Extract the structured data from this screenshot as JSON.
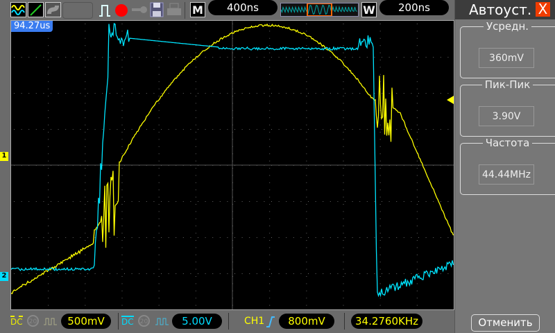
{
  "toolbar": {
    "mode_label": "M",
    "timebase": "400ns",
    "window_label": "W",
    "window_timebase": "200ns",
    "icons": [
      "channels-icon",
      "cursor-icon",
      "persist-icon",
      "trigger-pulse-icon",
      "record-icon",
      "key-icon",
      "save-icon",
      "print-icon"
    ],
    "record_color": "#ff0000"
  },
  "screen": {
    "trigger_position": "94.27us",
    "ch1_marker": "1",
    "ch2_marker": "2",
    "ch1_color": "#ffff00",
    "ch2_color": "#00e5ff"
  },
  "bottom": {
    "ch1_coupling": "DC",
    "ch1_bw": "20",
    "ch1_scale": "500mV",
    "ch2_coupling": "DC",
    "ch2_bw": "20",
    "ch2_scale": "5.00V",
    "trigger_source": "CH1",
    "trigger_level": "800mV",
    "trigger_frequency": "34.2760KHz"
  },
  "panel": {
    "title": "Автоуст.",
    "close": "X",
    "groups": [
      {
        "label": "Усредн.",
        "value": "360mV"
      },
      {
        "label": "Пик-Пик",
        "value": "3.90V"
      },
      {
        "label": "Частота",
        "value": "44.44MHz"
      }
    ],
    "cancel": "Отменить"
  }
}
